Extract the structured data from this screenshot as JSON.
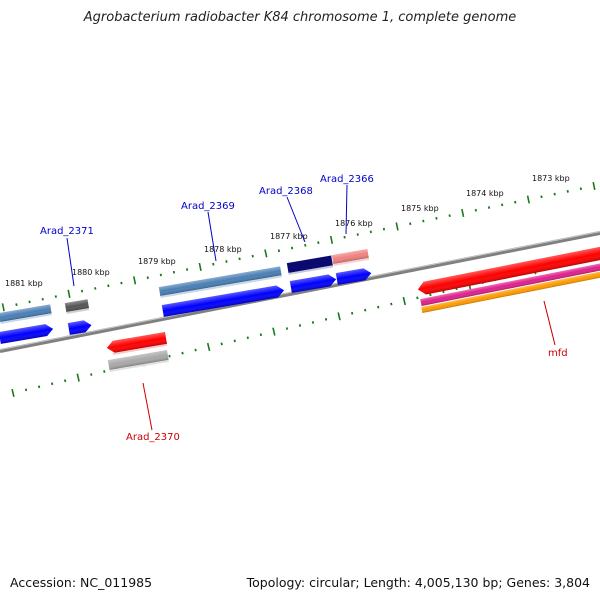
{
  "title": "Agrobacterium radiobacter K84 chromosome 1, complete genome",
  "footer": {
    "accession": "Accession: NC_011985",
    "summary": "Topology: circular; Length: 4,005,130 bp; Genes: 3,804"
  },
  "scale_labels": [
    "1873 kbp",
    "1874 kbp",
    "1875 kbp",
    "1876 kbp",
    "1877 kbp",
    "1878 kbp",
    "1879 kbp",
    "1880 kbp",
    "1881 kbp"
  ],
  "gene_labels": [
    {
      "text": "Arad_2366",
      "color": "#0000cc"
    },
    {
      "text": "Arad_2368",
      "color": "#0000cc"
    },
    {
      "text": "Arad_2369",
      "color": "#0000cc"
    },
    {
      "text": "Arad_2371",
      "color": "#0000cc"
    },
    {
      "text": "Arad_2370",
      "color": "#cc0000"
    },
    {
      "text": "mfd",
      "color": "#cc0000"
    }
  ],
  "colors": {
    "backbone": "#808080",
    "ticks": "#1a7a1a",
    "cds_forward": "#0000ff",
    "cds_reverse": "#ff0000",
    "steelblue_feature": "#4a7fb5",
    "navy_feature": "#0a0a70",
    "pink_feature": "#f08080",
    "gray_feature": "#a8a8a8",
    "darkgray_feature": "#555555",
    "magenta_feature": "#e0208c",
    "orange_feature": "#ff9a00"
  }
}
